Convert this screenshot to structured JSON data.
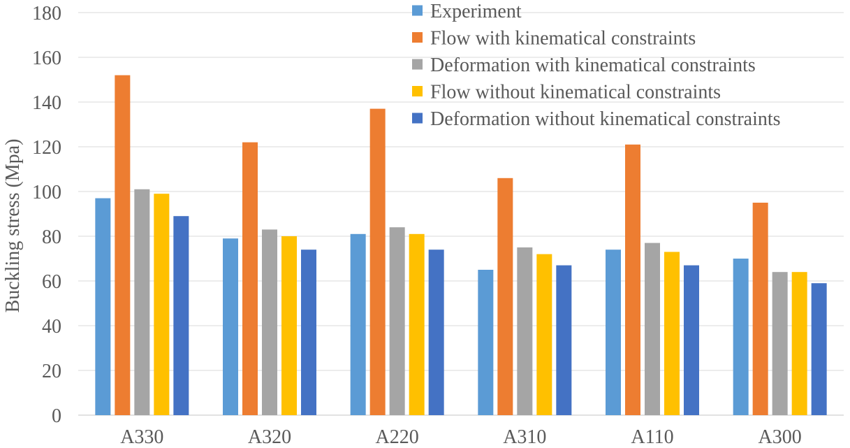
{
  "chart_data": {
    "type": "bar",
    "title": "",
    "xlabel": "",
    "ylabel": "Buckling stress (Mpa)",
    "ylim": [
      0,
      180
    ],
    "yticks": [
      0,
      20,
      40,
      60,
      80,
      100,
      120,
      140,
      160,
      180
    ],
    "grid": true,
    "legend_position": "top-right",
    "categories": [
      "A330",
      "A320",
      "A220",
      "A310",
      "A110",
      "A300"
    ],
    "series": [
      {
        "name": "Experiment",
        "color": "#5b9bd5",
        "values": [
          97,
          79,
          81,
          65,
          74,
          70
        ]
      },
      {
        "name": "Flow with kinematical constraints",
        "color": "#ed7d31",
        "values": [
          152,
          122,
          137,
          106,
          121,
          95
        ]
      },
      {
        "name": "Deformation with kinematical constraints",
        "color": "#a5a5a5",
        "values": [
          101,
          83,
          84,
          75,
          77,
          64
        ]
      },
      {
        "name": "Flow without kinematical constraints",
        "color": "#ffc000",
        "values": [
          99,
          80,
          81,
          72,
          73,
          64
        ]
      },
      {
        "name": "Deformation without kinematical constraints",
        "color": "#4472c4",
        "values": [
          89,
          74,
          74,
          67,
          67,
          59
        ]
      }
    ]
  }
}
